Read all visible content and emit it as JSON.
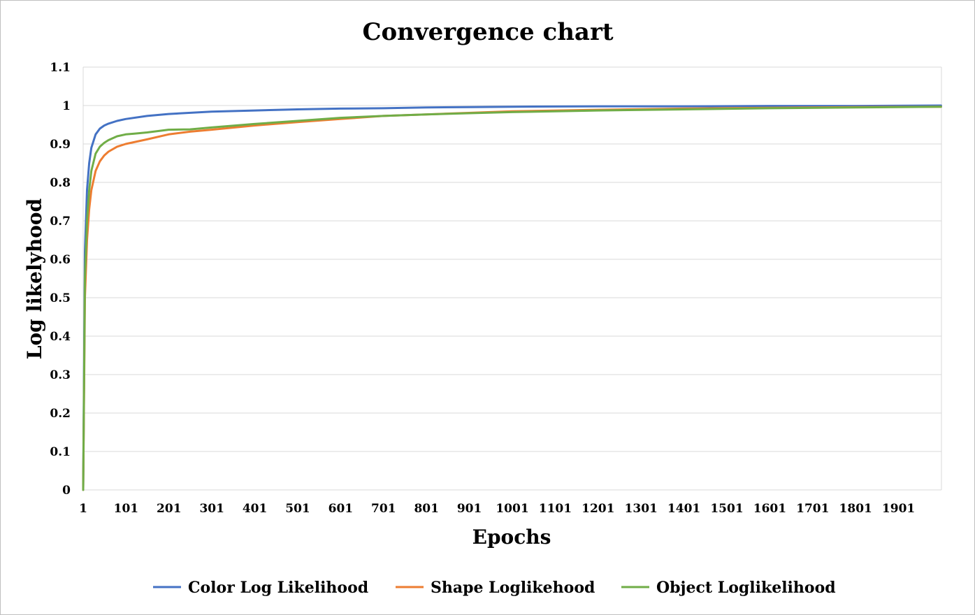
{
  "chart_data": {
    "type": "line",
    "title": "Convergence chart",
    "xlabel": "Epochs",
    "ylabel": "Log likelyhood",
    "xlim": [
      1,
      2001
    ],
    "ylim": [
      0,
      1.1
    ],
    "x_ticks": [
      "1",
      "101",
      "201",
      "301",
      "401",
      "501",
      "601",
      "701",
      "801",
      "901",
      "1001",
      "1101",
      "1201",
      "1301",
      "1401",
      "1501",
      "1601",
      "1701",
      "1801",
      "1901"
    ],
    "y_ticks": [
      "0",
      "0.1",
      "0.2",
      "0.3",
      "0.4",
      "0.5",
      "0.6",
      "0.7",
      "0.8",
      "0.9",
      "1",
      "1.1"
    ],
    "grid": true,
    "legend_position": "bottom",
    "series": [
      {
        "name": "Color Log Likelihood",
        "color": "#4472c4",
        "x": [
          1,
          5,
          10,
          15,
          20,
          30,
          40,
          50,
          60,
          80,
          100,
          150,
          200,
          300,
          400,
          500,
          600,
          700,
          800,
          900,
          1000,
          1200,
          1400,
          1600,
          1800,
          2000
        ],
        "y": [
          0,
          0.62,
          0.78,
          0.85,
          0.89,
          0.925,
          0.94,
          0.948,
          0.953,
          0.96,
          0.965,
          0.973,
          0.978,
          0.984,
          0.987,
          0.99,
          0.992,
          0.993,
          0.995,
          0.996,
          0.997,
          0.998,
          0.998,
          0.999,
          0.999,
          1.0
        ]
      },
      {
        "name": "Shape Loglikehood",
        "color": "#ed7d31",
        "x": [
          1,
          5,
          10,
          15,
          20,
          30,
          40,
          50,
          60,
          80,
          100,
          150,
          200,
          250,
          300,
          400,
          500,
          600,
          700,
          800,
          900,
          1000,
          1200,
          1400,
          1600,
          1800,
          2000
        ],
        "y": [
          0,
          0.5,
          0.65,
          0.73,
          0.78,
          0.83,
          0.855,
          0.87,
          0.88,
          0.893,
          0.9,
          0.912,
          0.925,
          0.932,
          0.937,
          0.948,
          0.957,
          0.965,
          0.973,
          0.977,
          0.981,
          0.985,
          0.989,
          0.992,
          0.994,
          0.996,
          0.997
        ]
      },
      {
        "name": "Object Loglikelihood",
        "color": "#70ad47",
        "x": [
          1,
          5,
          10,
          15,
          20,
          30,
          40,
          50,
          60,
          80,
          100,
          120,
          150,
          200,
          250,
          300,
          400,
          500,
          600,
          700,
          800,
          900,
          1000,
          1200,
          1400,
          1600,
          1800,
          2000
        ],
        "y": [
          0,
          0.55,
          0.7,
          0.78,
          0.83,
          0.875,
          0.893,
          0.903,
          0.91,
          0.92,
          0.925,
          0.927,
          0.93,
          0.937,
          0.938,
          0.943,
          0.952,
          0.96,
          0.968,
          0.973,
          0.977,
          0.98,
          0.983,
          0.987,
          0.99,
          0.993,
          0.995,
          0.997
        ]
      }
    ]
  }
}
